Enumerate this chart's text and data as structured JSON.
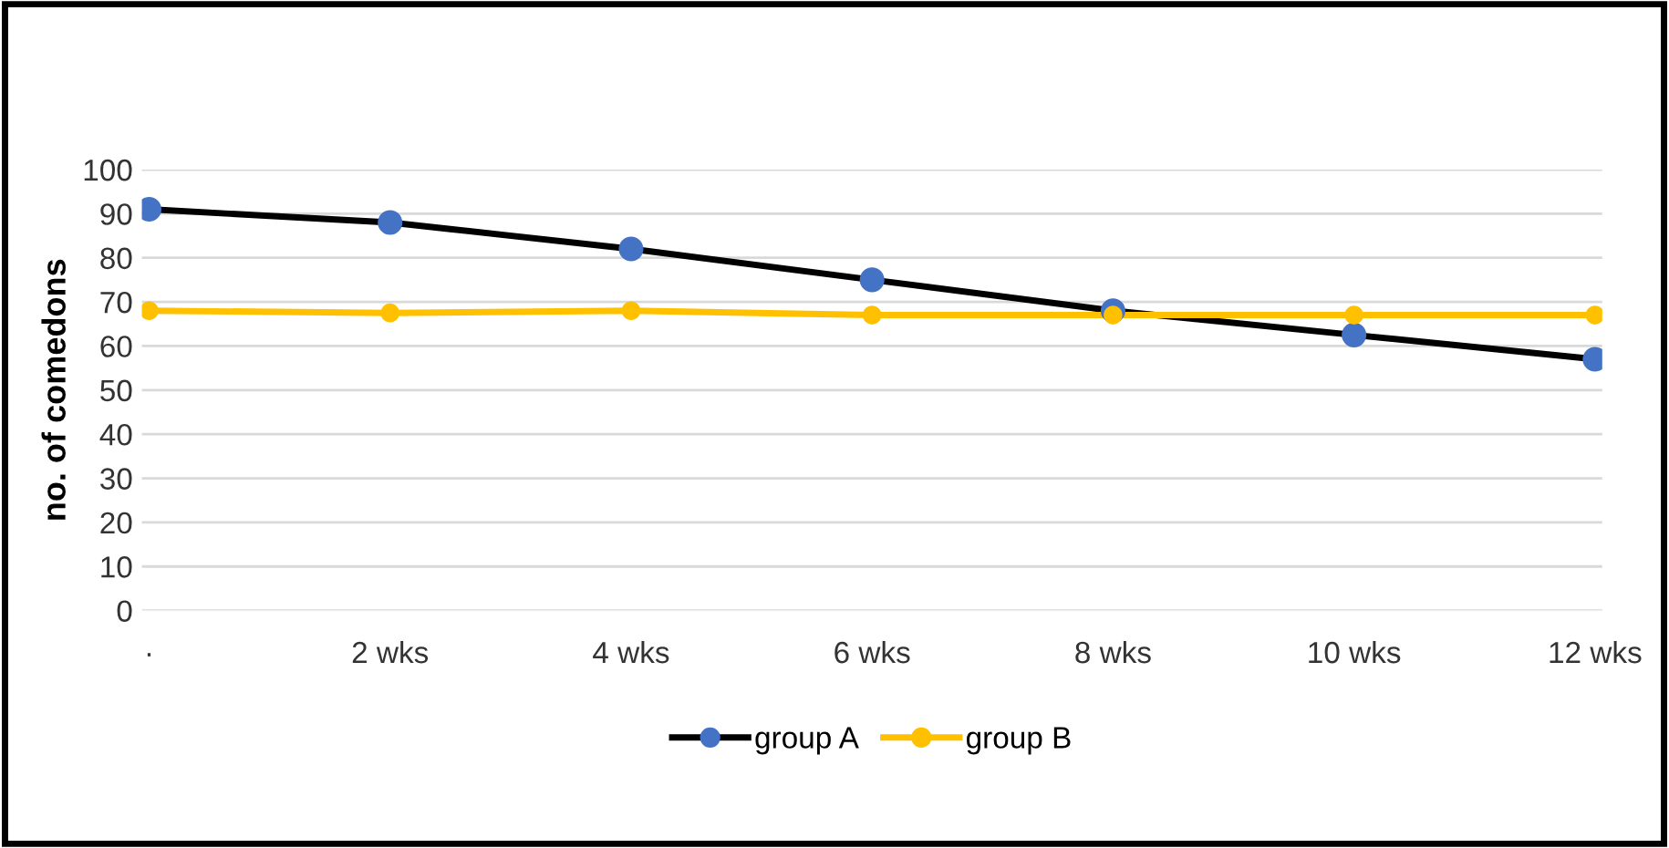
{
  "chart_data": {
    "type": "line",
    "ylabel": "no. of comedons",
    "categories": [
      "·",
      "2 wks",
      "4 wks",
      "6 wks",
      "8 wks",
      "10 wks",
      "12 wks"
    ],
    "series": [
      {
        "name": "group A",
        "color": "#000000",
        "colors": [
          "#4472c4",
          "#4472c4",
          "#4472c4",
          "#4472c4",
          "#4472c4",
          "#4472c4",
          "#4472c4"
        ],
        "values": [
          91,
          88,
          82,
          75,
          68,
          62.5,
          57
        ]
      },
      {
        "name": "group B",
        "color": "#ffc000",
        "values": [
          68,
          67.5,
          68,
          67,
          67,
          67,
          67
        ]
      }
    ],
    "ylim": [
      0,
      100
    ],
    "yticks": [
      0,
      10,
      20,
      30,
      40,
      50,
      60,
      70,
      80,
      90,
      100
    ],
    "grid": "y",
    "legend": "bottom",
    "marker": "circle"
  }
}
